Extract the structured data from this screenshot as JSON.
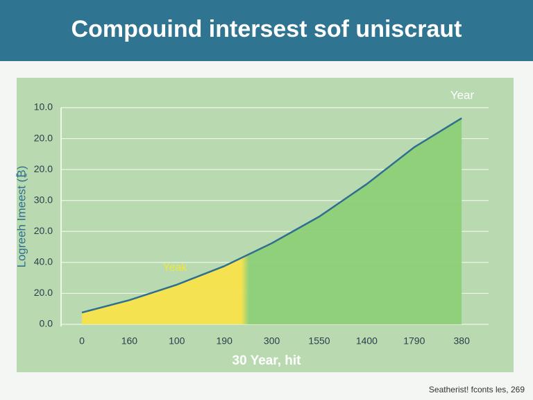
{
  "chart_data": {
    "type": "area",
    "title": "Compouind intersest sof uniscraut",
    "y_label": "Logreeh Imeest (₿)",
    "x_label": "30 Year, hit",
    "annotations": [
      "Year",
      "Yeak"
    ],
    "footer": "Seatherist! fconts les, 269",
    "categories": [
      "0",
      "160",
      "100",
      "190",
      "300",
      "1550",
      "1400",
      "1790",
      "380"
    ],
    "series": [
      {
        "name": "Year",
        "color": "#2f6f8f",
        "values": [
          0.38,
          0.78,
          1.28,
          1.88,
          2.62,
          3.48,
          4.53,
          5.72,
          6.66
        ]
      }
    ],
    "area_colors": [
      "#f8e24c",
      "#8ecf78"
    ],
    "ylim": [
      0,
      7
    ],
    "yticks": [
      {
        "value": 0,
        "label": "0.0"
      },
      {
        "value": 1,
        "label": "20.0"
      },
      {
        "value": 2,
        "label": "40.0"
      },
      {
        "value": 3,
        "label": "20.0"
      },
      {
        "value": 4,
        "label": "30.0"
      },
      {
        "value": 5,
        "label": "20.0"
      },
      {
        "value": 6,
        "label": "20.0"
      },
      {
        "value": 7,
        "label": "10.0"
      }
    ],
    "grid": true
  }
}
